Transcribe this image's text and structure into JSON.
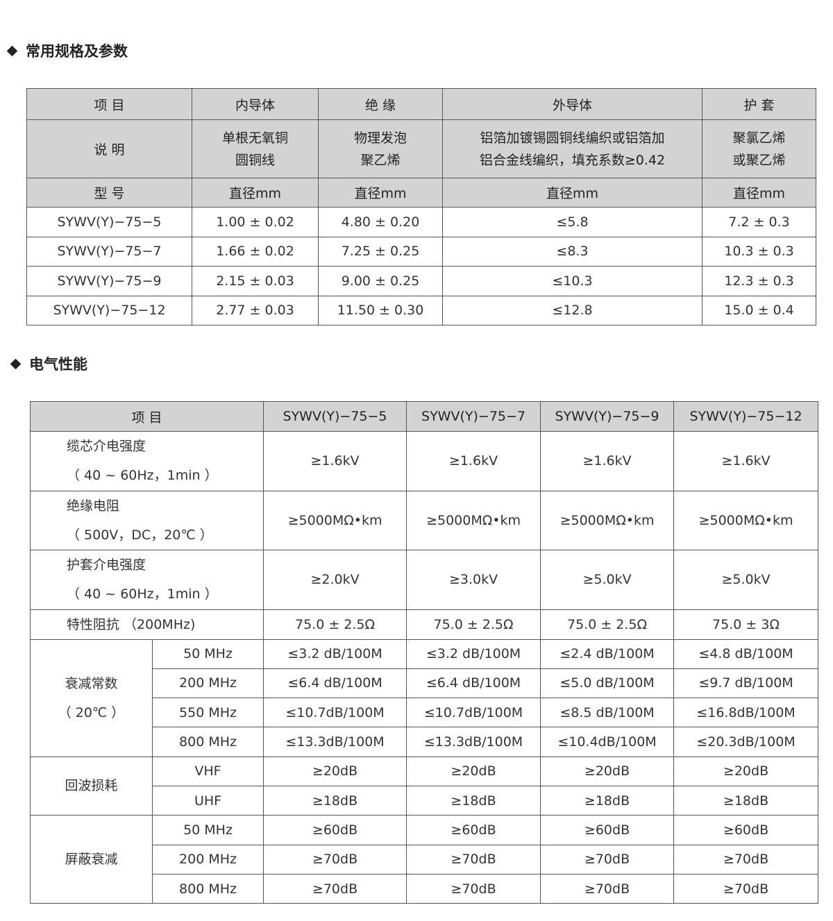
{
  "spec_section": {
    "title": "常用规格及参数",
    "header_row": [
      "项  目",
      "内导体",
      "绝  缘",
      "外导体",
      "护  套"
    ],
    "desc_row": {
      "label": "说  明",
      "cells": [
        [
          "单根无氧铜",
          "圆铜线"
        ],
        [
          "物理发泡",
          "聚乙烯"
        ],
        [
          "铝箔加镀锡圆铜线编织或铝箔加",
          "铝合金线编织，填充系数≥0.42"
        ],
        [
          "聚氯乙烯",
          "或聚乙烯"
        ]
      ]
    },
    "unit_row": {
      "label": "型  号",
      "cells": [
        "直径mm",
        "直径mm",
        "直径mm",
        "直径mm"
      ]
    },
    "rows": [
      [
        "SYWV(Y)−75−5",
        "1.00 ± 0.02",
        "4.80 ± 0.20",
        "≤5.8",
        "7.2 ± 0.3"
      ],
      [
        "SYWV(Y)−75−7",
        "1.66 ± 0.02",
        "7.25 ± 0.25",
        "≤8.3",
        "10.3 ± 0.3"
      ],
      [
        "SYWV(Y)−75−9",
        "2.15 ± 0.03",
        "9.00 ± 0.25",
        "≤10.3",
        "12.3 ± 0.3"
      ],
      [
        "SYWV(Y)−75−12",
        "2.77 ± 0.03",
        "11.50 ± 0.30",
        "≤12.8",
        "15.0 ± 0.4"
      ]
    ]
  },
  "electrical_section": {
    "title": "电气性能",
    "header": {
      "item": "项    目",
      "models": [
        "SYWV(Y)−75−5",
        "SYWV(Y)−75−7",
        "SYWV(Y)−75−9",
        "SYWV(Y)−75−12"
      ]
    },
    "rows": [
      {
        "label": "缆芯介电强度",
        "sub": "（ 40 ~ 60Hz，1min ）",
        "values": [
          "≥1.6kV",
          "≥1.6kV",
          "≥1.6kV",
          "≥1.6kV"
        ]
      },
      {
        "label": "绝缘电阻",
        "sub": "（ 500V，DC，20℃ ）",
        "values": [
          "≥5000MΩ•km",
          "≥5000MΩ•km",
          "≥5000MΩ•km",
          "≥5000MΩ•km"
        ]
      },
      {
        "label": "护套介电强度",
        "sub": "（ 40 ~ 60Hz，1min ）",
        "values": [
          "≥2.0kV",
          "≥3.0kV",
          "≥5.0kV",
          "≥5.0kV"
        ]
      },
      {
        "label": "特性阻抗 （200MHz)",
        "sub": "",
        "values": [
          "75.0 ± 2.5Ω",
          "75.0 ± 2.5Ω",
          "75.0 ± 2.5Ω",
          "75.0 ± 3Ω"
        ]
      }
    ],
    "groups": [
      {
        "label": "衰减常数",
        "sub": "（ 20℃ ）",
        "rows": [
          {
            "freq": "50  MHz",
            "values": [
              "≤3.2 dB/100M",
              "≤3.2 dB/100M",
              "≤2.4 dB/100M",
              "≤4.8 dB/100M"
            ]
          },
          {
            "freq": "200 MHz",
            "values": [
              "≤6.4 dB/100M",
              "≤6.4 dB/100M",
              "≤5.0 dB/100M",
              "≤9.7 dB/100M"
            ]
          },
          {
            "freq": "550 MHz",
            "values": [
              "≤10.7dB/100M",
              "≤10.7dB/100M",
              "≤8.5 dB/100M",
              "≤16.8dB/100M"
            ]
          },
          {
            "freq": "800 MHz",
            "values": [
              "≤13.3dB/100M",
              "≤13.3dB/100M",
              "≤10.4dB/100M",
              "≤20.3dB/100M"
            ]
          }
        ]
      },
      {
        "label": "回波损耗",
        "sub": "",
        "rows": [
          {
            "freq": "VHF",
            "values": [
              "≥20dB",
              "≥20dB",
              "≥20dB",
              "≥20dB"
            ]
          },
          {
            "freq": "UHF",
            "values": [
              "≥18dB",
              "≥18dB",
              "≥18dB",
              "≥18dB"
            ]
          }
        ]
      },
      {
        "label": "屏蔽衰减",
        "sub": "",
        "rows": [
          {
            "freq": "50  MHz",
            "values": [
              "≥60dB",
              "≥60dB",
              "≥60dB",
              "≥60dB"
            ]
          },
          {
            "freq": "200 MHz",
            "values": [
              "≥70dB",
              "≥70dB",
              "≥70dB",
              "≥70dB"
            ]
          },
          {
            "freq": "800 MHz",
            "values": [
              "≥70dB",
              "≥70dB",
              "≥70dB",
              "≥70dB"
            ]
          }
        ]
      }
    ]
  }
}
